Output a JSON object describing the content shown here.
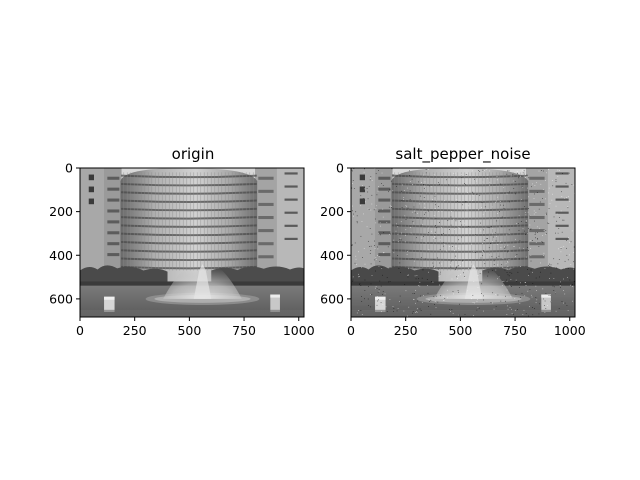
{
  "chart_data": [
    {
      "type": "image",
      "title": "origin",
      "image_content": "grayscale photo of a round multi-storey building behind a fountain and pond",
      "xlabel": "",
      "ylabel": "",
      "xlim": [
        0,
        1024
      ],
      "ylim": [
        683,
        0
      ],
      "x_ticks": [
        0,
        250,
        500,
        750,
        1000
      ],
      "x_tick_labels": [
        "0",
        "250",
        "500",
        "750",
        "1000"
      ],
      "y_ticks": [
        0,
        200,
        400,
        600
      ],
      "y_tick_labels": [
        "0",
        "200",
        "400",
        "600"
      ],
      "grid": false
    },
    {
      "type": "image",
      "title": "salt_pepper_noise",
      "image_content": "same grayscale photo with salt and pepper noise",
      "xlabel": "",
      "ylabel": "",
      "xlim": [
        0,
        1024
      ],
      "ylim": [
        683,
        0
      ],
      "x_ticks": [
        0,
        250,
        500,
        750,
        1000
      ],
      "x_tick_labels": [
        "0",
        "250",
        "500",
        "750",
        "1000"
      ],
      "y_ticks": [
        0,
        200,
        400,
        600
      ],
      "y_tick_labels": [
        "0",
        "200",
        "400",
        "600"
      ],
      "grid": false
    }
  ]
}
